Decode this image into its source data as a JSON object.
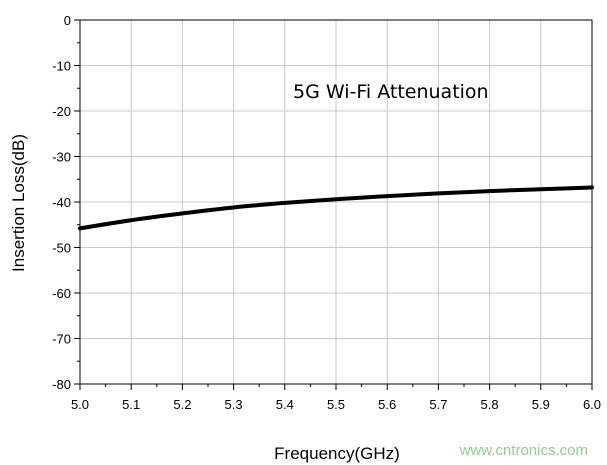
{
  "chart_data": {
    "type": "line",
    "title": "",
    "annotation": "5G Wi-Fi Attenuation",
    "xlabel": "Frequency(GHz)",
    "ylabel": "Insertion Loss(dB)",
    "xlim": [
      5.0,
      6.0
    ],
    "ylim": [
      -80,
      0
    ],
    "x_ticks": [
      5.0,
      5.1,
      5.2,
      5.3,
      5.4,
      5.5,
      5.6,
      5.7,
      5.8,
      5.9,
      6.0
    ],
    "x_tick_labels": [
      "5.0",
      "5.1",
      "5.2",
      "5.3",
      "5.4",
      "5.5",
      "5.6",
      "5.7",
      "5.8",
      "5.9",
      "6.0"
    ],
    "y_ticks": [
      0,
      -10,
      -20,
      -30,
      -40,
      -50,
      -60,
      -70,
      -80
    ],
    "y_tick_labels": [
      "0",
      "-10",
      "-20",
      "-30",
      "-40",
      "-50",
      "-60",
      "-70",
      "-80"
    ],
    "grid": true,
    "legend": "none",
    "series": [
      {
        "color": "#000000",
        "x": [
          5.0,
          5.1,
          5.2,
          5.3,
          5.4,
          5.5,
          5.6,
          5.7,
          5.8,
          5.9,
          6.0
        ],
        "y": [
          -45.8,
          -44.0,
          -42.5,
          -41.2,
          -40.2,
          -39.4,
          -38.7,
          -38.1,
          -37.6,
          -37.2,
          -36.8
        ]
      }
    ]
  },
  "watermark": "www.cntronics.com",
  "colors": {
    "grid": "#c8c8c8",
    "axis": "#000000",
    "line": "#000000",
    "watermark": "#8fd18f"
  }
}
